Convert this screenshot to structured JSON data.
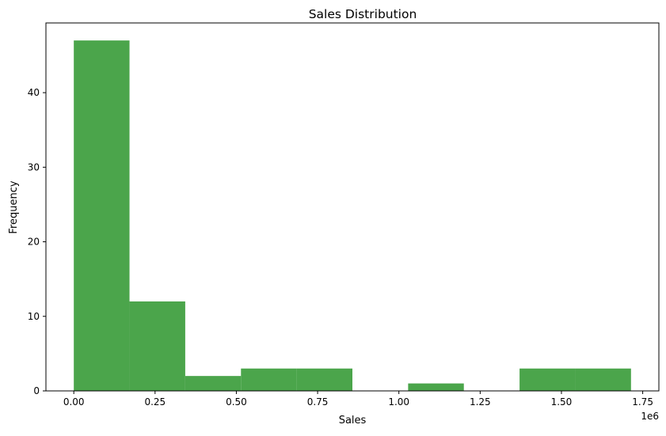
{
  "chart_data": {
    "type": "bar",
    "title": "Sales Distribution",
    "xlabel": "Sales",
    "ylabel": "Frequency",
    "x_offset_label": "1e6",
    "bar_color": "#4ba54b",
    "bins": [
      {
        "x0": 0.0,
        "x1": 0.1714,
        "count": 47
      },
      {
        "x0": 0.1714,
        "x1": 0.3428,
        "count": 12
      },
      {
        "x0": 0.3428,
        "x1": 0.5142,
        "count": 2
      },
      {
        "x0": 0.5142,
        "x1": 0.6856,
        "count": 3
      },
      {
        "x0": 0.6856,
        "x1": 0.857,
        "count": 3
      },
      {
        "x0": 0.857,
        "x1": 1.0284,
        "count": 0
      },
      {
        "x0": 1.0284,
        "x1": 1.1998,
        "count": 1
      },
      {
        "x0": 1.1998,
        "x1": 1.3712,
        "count": 0
      },
      {
        "x0": 1.3712,
        "x1": 1.5426,
        "count": 3
      },
      {
        "x0": 1.5426,
        "x1": 1.714,
        "count": 3
      }
    ],
    "xticks": [
      {
        "value": 0.0,
        "label": "0.00"
      },
      {
        "value": 0.25,
        "label": "0.25"
      },
      {
        "value": 0.5,
        "label": "0.50"
      },
      {
        "value": 0.75,
        "label": "0.75"
      },
      {
        "value": 1.0,
        "label": "1.00"
      },
      {
        "value": 1.25,
        "label": "1.25"
      },
      {
        "value": 1.5,
        "label": "1.50"
      },
      {
        "value": 1.75,
        "label": "1.75"
      }
    ],
    "yticks": [
      {
        "value": 0,
        "label": "0"
      },
      {
        "value": 10,
        "label": "10"
      },
      {
        "value": 20,
        "label": "20"
      },
      {
        "value": 30,
        "label": "30"
      },
      {
        "value": 40,
        "label": "40"
      }
    ],
    "xlim": [
      -0.0857,
      1.7997
    ],
    "ylim": [
      0,
      49.35
    ],
    "grid": false,
    "legend": "none"
  }
}
